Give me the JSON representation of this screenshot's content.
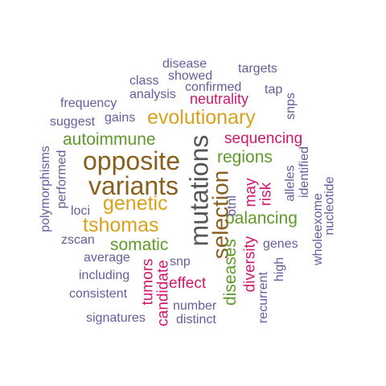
{
  "words": {
    "disease": "disease",
    "targets": "targets",
    "showed": "showed",
    "class": "class",
    "confirmed": "confirmed",
    "tap": "tap",
    "analysis": "analysis",
    "neutrality": "neutrality",
    "snps": "snps",
    "frequency": "frequency",
    "suggest": "suggest",
    "gains": "gains",
    "evolutionary": "evolutionary",
    "autoimmune": "autoimmune",
    "sequencing": "sequencing",
    "mutations": "mutations",
    "regions": "regions",
    "opposite": "opposite",
    "polymorphisms": "polymorphisms",
    "performed": "performed",
    "variants": "variants",
    "genetic": "genetic",
    "selection": "selection",
    "may": "may",
    "risk": "risk",
    "alleles": "alleles",
    "identified": "identified",
    "nucleotide": "nucleotide",
    "btnl": "btnl",
    "loci": "loci",
    "balancing": "balancing",
    "tshomas": "tshomas",
    "zscan": "zscan",
    "wholeexome": "wholeexome",
    "somatic": "somatic",
    "genes": "genes",
    "average": "average",
    "diseases": "diseases",
    "diversity": "diversity",
    "tumors": "tumors",
    "snp": "snp",
    "high": "high",
    "including": "including",
    "candidate": "candidate",
    "effect": "effect",
    "consistent": "consistent",
    "recurrent": "recurrent",
    "number": "number",
    "signatures": "signatures",
    "distinct": "distinct"
  }
}
